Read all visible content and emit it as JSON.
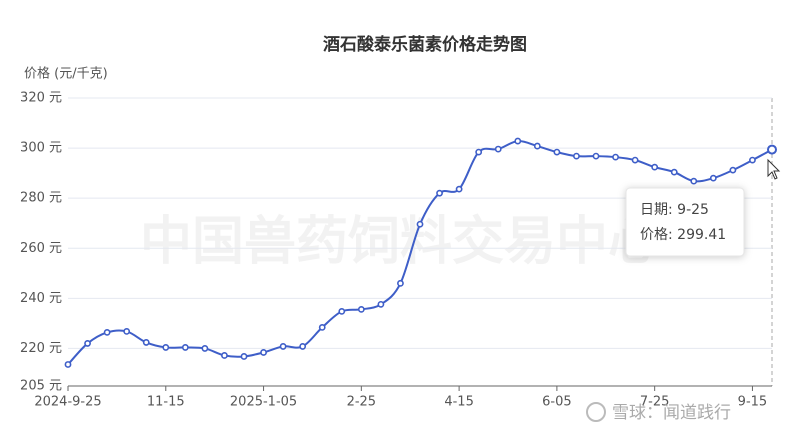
{
  "chart_data": {
    "type": "line",
    "title": "酒石酸泰乐菌素价格走势图",
    "y_label": "价格 (元/千克)",
    "watermark": "中国兽药饲料交易中心",
    "footer": "雪球：闻道践行",
    "categories": [
      "2024-9-25",
      null,
      null,
      null,
      null,
      "11-15",
      null,
      null,
      null,
      null,
      "2025-1-05",
      null,
      null,
      null,
      null,
      "2-25",
      null,
      null,
      null,
      null,
      "4-15",
      null,
      null,
      null,
      null,
      "6-05",
      null,
      null,
      null,
      null,
      "7-25",
      null,
      null,
      null,
      null,
      "9-15",
      null
    ],
    "values": [
      213.6,
      222,
      226.4,
      226.8,
      222.4,
      220.4,
      220.4,
      220,
      217.2,
      216.8,
      218.4,
      220.8,
      220.8,
      228.4,
      234.8,
      235.6,
      237.6,
      246,
      269.6,
      282,
      283.6,
      298.4,
      299.6,
      302.8,
      300.8,
      298.4,
      296.8,
      296.8,
      296.4,
      295.2,
      292.4,
      290.4,
      286.8,
      288,
      291.2,
      295.2,
      299.41
    ],
    "color": "#3e5ec8",
    "ylim": [
      205,
      320
    ],
    "yticks": [
      {
        "value": 205,
        "label": "205 元"
      },
      {
        "value": 220,
        "label": "220 元"
      },
      {
        "value": 240,
        "label": "240 元"
      },
      {
        "value": 260,
        "label": "260 元"
      },
      {
        "value": 280,
        "label": "280 元"
      },
      {
        "value": 300,
        "label": "300 元"
      },
      {
        "value": 320,
        "label": "320 元"
      }
    ],
    "grid": true,
    "tooltip": [
      "日期: 9-25",
      "价格: 299.41"
    ]
  }
}
